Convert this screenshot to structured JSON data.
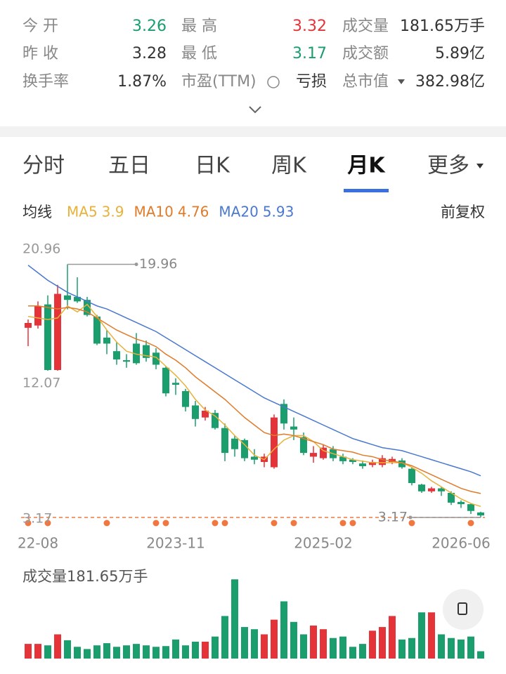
{
  "stats": [
    [
      {
        "label": "今 开",
        "value": "3.26",
        "color": "#1a9e6e"
      },
      {
        "label": "最 高",
        "value": "3.32",
        "color": "#e5333a"
      },
      {
        "label": "成交量",
        "value": "181.65万手"
      }
    ],
    [
      {
        "label": "昨 收",
        "value": "3.28"
      },
      {
        "label": "最 低",
        "value": "3.17",
        "color": "#1a9e6e"
      },
      {
        "label": "成交额",
        "value": "5.89亿"
      }
    ],
    [
      {
        "label": "换手率",
        "value": "1.87%"
      },
      {
        "label": "市盈(TTM)",
        "value": "亏损"
      },
      {
        "label": "总市值",
        "value": "382.98亿"
      }
    ]
  ],
  "tabs": [
    "分时",
    "五日",
    "日K",
    "周K",
    "月K",
    "更多"
  ],
  "active_tab": 4,
  "ma_label": "均线",
  "adjust": "前复权",
  "chart_data": [
    {
      "type": "candlestick",
      "categories": [
        null,
        "22-08",
        null,
        null,
        null,
        null,
        null,
        null,
        null,
        null,
        null,
        null,
        null,
        null,
        null,
        "2023-11",
        null,
        null,
        null,
        null,
        null,
        null,
        null,
        null,
        null,
        null,
        null,
        null,
        null,
        null,
        "2025-02",
        null,
        null,
        null,
        null,
        null,
        null,
        null,
        null,
        null,
        null,
        null,
        null,
        null,
        "2026-06",
        null,
        null
      ],
      "open": [
        15.75,
        15.9,
        17.3,
        12.95,
        17.9,
        17.8,
        17.6,
        16.5,
        15.1,
        14.2,
        13.6,
        14.7,
        14.6,
        14.1,
        13.1,
        12.1,
        11.55,
        10.6,
        9.8,
        10.1,
        9.1,
        8.4,
        8.3,
        7.2,
        6.85,
        6.5,
        10.7,
        9.2,
        8.5,
        7.2,
        7.1,
        7.7,
        7.2,
        7.0,
        6.75,
        6.65,
        6.65,
        6.85,
        6.95,
        6.4,
        5.35,
        4.9,
        5.1,
        4.8,
        4.2,
        4.05,
        3.5
      ],
      "high": [
        16.3,
        17.5,
        17.9,
        18.6,
        19.96,
        19.1,
        17.8,
        16.6,
        15.6,
        14.8,
        14.0,
        15.4,
        14.9,
        14.4,
        13.2,
        12.4,
        11.7,
        10.9,
        10.5,
        10.3,
        9.4,
        8.6,
        8.4,
        7.7,
        7.4,
        10.0,
        11.0,
        9.8,
        8.8,
        7.9,
        8.0,
        7.9,
        7.4,
        7.1,
        6.95,
        7.0,
        7.3,
        7.2,
        7.1,
        6.5,
        5.4,
        5.2,
        5.2,
        4.9,
        4.3,
        4.1,
        3.55
      ],
      "low": [
        14.53,
        15.7,
        12.9,
        12.9,
        16.97,
        17.4,
        16.5,
        14.6,
        14.0,
        13.3,
        13.1,
        13.3,
        13.5,
        13.0,
        11.2,
        11.3,
        10.2,
        9.2,
        9.6,
        9.0,
        6.9,
        7.2,
        6.9,
        6.7,
        6.5,
        6.4,
        9.0,
        8.3,
        7.3,
        6.8,
        7.0,
        6.9,
        6.7,
        6.7,
        6.4,
        6.5,
        6.5,
        6.7,
        6.4,
        5.3,
        4.8,
        4.8,
        4.6,
        4.0,
        3.8,
        3.4,
        3.17
      ],
      "close": [
        16.07,
        17.2,
        12.95,
        18.0,
        17.6,
        17.5,
        16.6,
        14.7,
        14.7,
        13.65,
        13.5,
        13.4,
        13.75,
        13.3,
        11.4,
        11.97,
        10.5,
        9.7,
        10.25,
        9.1,
        7.45,
        7.7,
        7.1,
        7.0,
        7.2,
        9.8,
        9.4,
        9.0,
        7.45,
        7.45,
        7.8,
        7.1,
        6.9,
        6.85,
        6.57,
        6.85,
        7.1,
        7.05,
        6.5,
        5.45,
        4.9,
        5.1,
        4.9,
        4.15,
        4.05,
        3.6,
        3.3
      ],
      "up_color": "#e5333a",
      "down_color": "#1a9e6e",
      "series": [
        {
          "name": "MA5",
          "color": "#e8b23a",
          "values": [
            16.5,
            16.4,
            16.3,
            16.4,
            17.2,
            16.8,
            17.3,
            16.5,
            15.6,
            14.8,
            14.2,
            14.0,
            13.9,
            13.8,
            13.2,
            12.6,
            11.9,
            11.0,
            10.3,
            9.9,
            9.3,
            8.6,
            8.0,
            7.3,
            7.0,
            7.7,
            8.3,
            8.6,
            8.6,
            8.2,
            7.6,
            7.4,
            7.2,
            7.0,
            6.9,
            6.8,
            6.8,
            6.8,
            6.8,
            6.5,
            6.1,
            5.6,
            5.2,
            4.8,
            4.4,
            4.1,
            3.9
          ]
        },
        {
          "name": "MA10",
          "color": "#e07b2a",
          "values": [
            17.2,
            17.2,
            17.1,
            17.0,
            17.1,
            17.0,
            16.8,
            16.4,
            16.0,
            15.6,
            15.3,
            15.0,
            14.8,
            14.5,
            14.0,
            13.6,
            13.1,
            12.5,
            12.0,
            11.5,
            11.0,
            10.4,
            9.8,
            9.3,
            8.8,
            8.6,
            8.7,
            8.6,
            8.4,
            8.2,
            8.0,
            7.7,
            7.6,
            7.5,
            7.3,
            7.2,
            7.0,
            6.9,
            6.8,
            6.6,
            6.3,
            6.0,
            5.7,
            5.4,
            5.1,
            4.9,
            4.76
          ]
        },
        {
          "name": "MA20",
          "color": "#4a78d0",
          "values": [
            19.9,
            19.4,
            18.9,
            18.5,
            18.1,
            17.8,
            17.5,
            17.2,
            17.0,
            16.7,
            16.4,
            16.1,
            15.8,
            15.5,
            15.1,
            14.7,
            14.3,
            13.9,
            13.5,
            13.1,
            12.7,
            12.3,
            11.9,
            11.5,
            11.1,
            10.8,
            10.5,
            10.2,
            9.9,
            9.6,
            9.3,
            9.0,
            8.7,
            8.4,
            8.2,
            8.0,
            7.8,
            7.7,
            7.6,
            7.4,
            7.2,
            7.0,
            6.8,
            6.6,
            6.4,
            6.2,
            5.93
          ]
        }
      ],
      "ylim": [
        3.17,
        20.96
      ],
      "yticks": [
        20.96,
        12.07,
        3.17
      ]
    },
    {
      "type": "volume",
      "title": "成交量",
      "unit": "万手",
      "values": [
        363,
        363,
        327,
        600,
        454,
        291,
        236,
        327,
        381,
        291,
        327,
        363,
        327,
        291,
        309,
        472,
        327,
        418,
        418,
        545,
        1054,
        1962,
        781,
        727,
        600,
        963,
        1417,
        908,
        600,
        817,
        727,
        509,
        545,
        291,
        363,
        690,
        781,
        1054,
        472,
        509,
        1144,
        1144,
        600,
        509,
        472,
        545,
        181.65
      ],
      "ylim": [
        0,
        2000
      ]
    }
  ]
}
